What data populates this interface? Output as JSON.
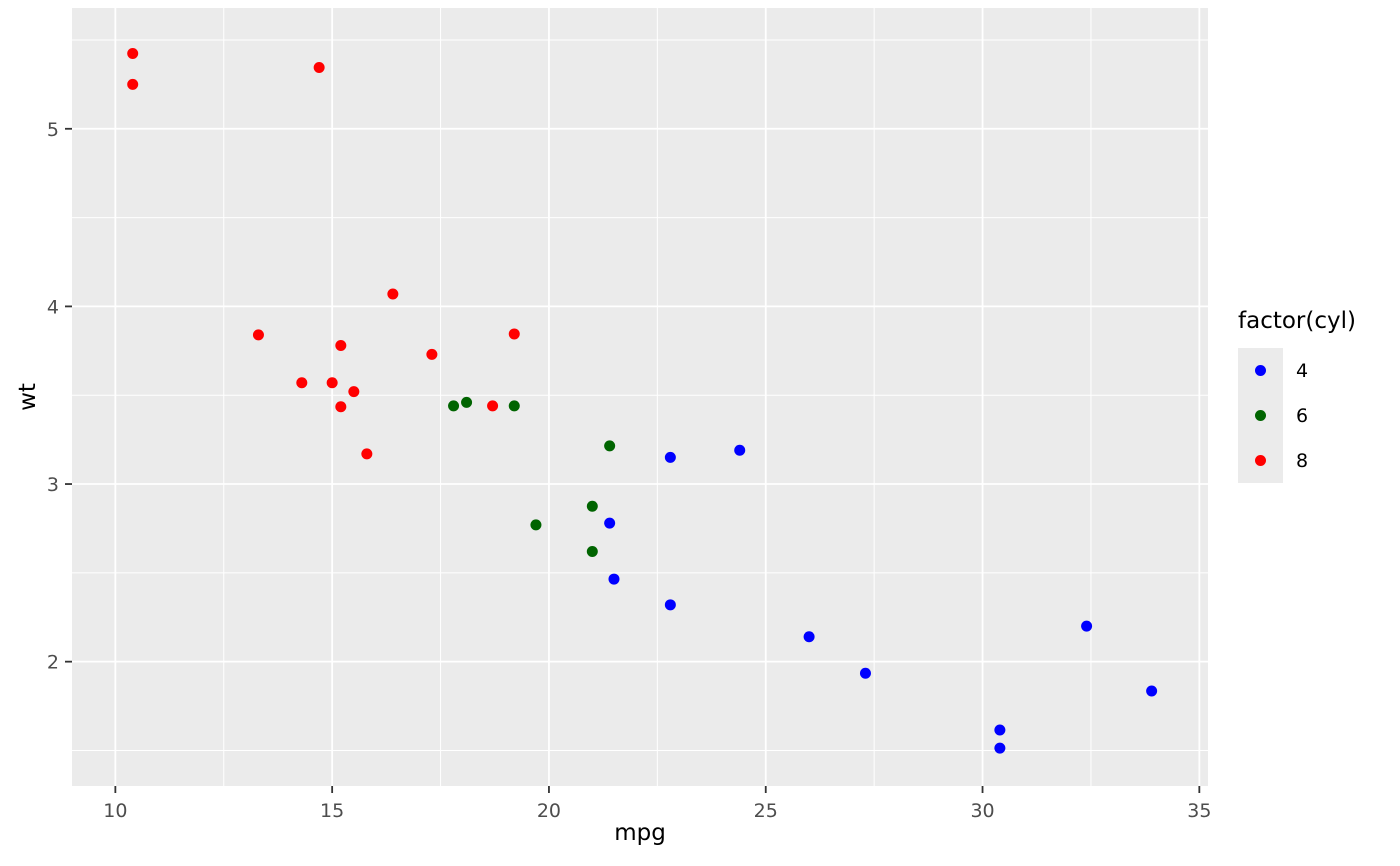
{
  "chart_data": {
    "type": "scatter",
    "title": "",
    "xlabel": "mpg",
    "ylabel": "wt",
    "xlim": [
      9.0,
      35.2
    ],
    "ylim": [
      1.3,
      5.68
    ],
    "x_ticks": [
      10,
      15,
      20,
      25,
      30,
      35
    ],
    "y_ticks": [
      2,
      3,
      4,
      5
    ],
    "x_minor_ticks": [
      12.5,
      17.5,
      22.5,
      27.5,
      32.5
    ],
    "y_minor_ticks": [
      1.5,
      2.5,
      3.5,
      4.5,
      5.5
    ],
    "grid": true,
    "panel_bg": "#EBEBEB",
    "grid_color": "#FFFFFF",
    "tick_color": "#333333",
    "tick_label_color": "#4D4D4D",
    "legend": {
      "title": "factor(cyl)",
      "position": "right",
      "entries": [
        {
          "label": "4",
          "color": "#0000FF"
        },
        {
          "label": "6",
          "color": "#006400"
        },
        {
          "label": "8",
          "color": "#FF0000"
        }
      ]
    },
    "series": [
      {
        "name": "4",
        "color": "#0000FF",
        "points": [
          [
            22.8,
            2.32
          ],
          [
            24.4,
            3.19
          ],
          [
            22.8,
            3.15
          ],
          [
            32.4,
            2.2
          ],
          [
            30.4,
            1.615
          ],
          [
            33.9,
            1.835
          ],
          [
            21.5,
            2.465
          ],
          [
            27.3,
            1.935
          ],
          [
            26.0,
            2.14
          ],
          [
            30.4,
            1.513
          ],
          [
            21.4,
            2.78
          ]
        ]
      },
      {
        "name": "6",
        "color": "#006400",
        "points": [
          [
            21.0,
            2.62
          ],
          [
            21.0,
            2.875
          ],
          [
            21.4,
            3.215
          ],
          [
            18.1,
            3.46
          ],
          [
            19.2,
            3.44
          ],
          [
            17.8,
            3.44
          ],
          [
            19.7,
            2.77
          ]
        ]
      },
      {
        "name": "8",
        "color": "#FF0000",
        "points": [
          [
            18.7,
            3.44
          ],
          [
            14.3,
            3.57
          ],
          [
            16.4,
            4.07
          ],
          [
            17.3,
            3.73
          ],
          [
            15.2,
            3.78
          ],
          [
            10.4,
            5.25
          ],
          [
            10.4,
            5.424
          ],
          [
            14.7,
            5.345
          ],
          [
            15.5,
            3.52
          ],
          [
            15.2,
            3.435
          ],
          [
            13.3,
            3.84
          ],
          [
            19.2,
            3.845
          ],
          [
            15.8,
            3.17
          ],
          [
            15.0,
            3.57
          ]
        ]
      }
    ]
  }
}
